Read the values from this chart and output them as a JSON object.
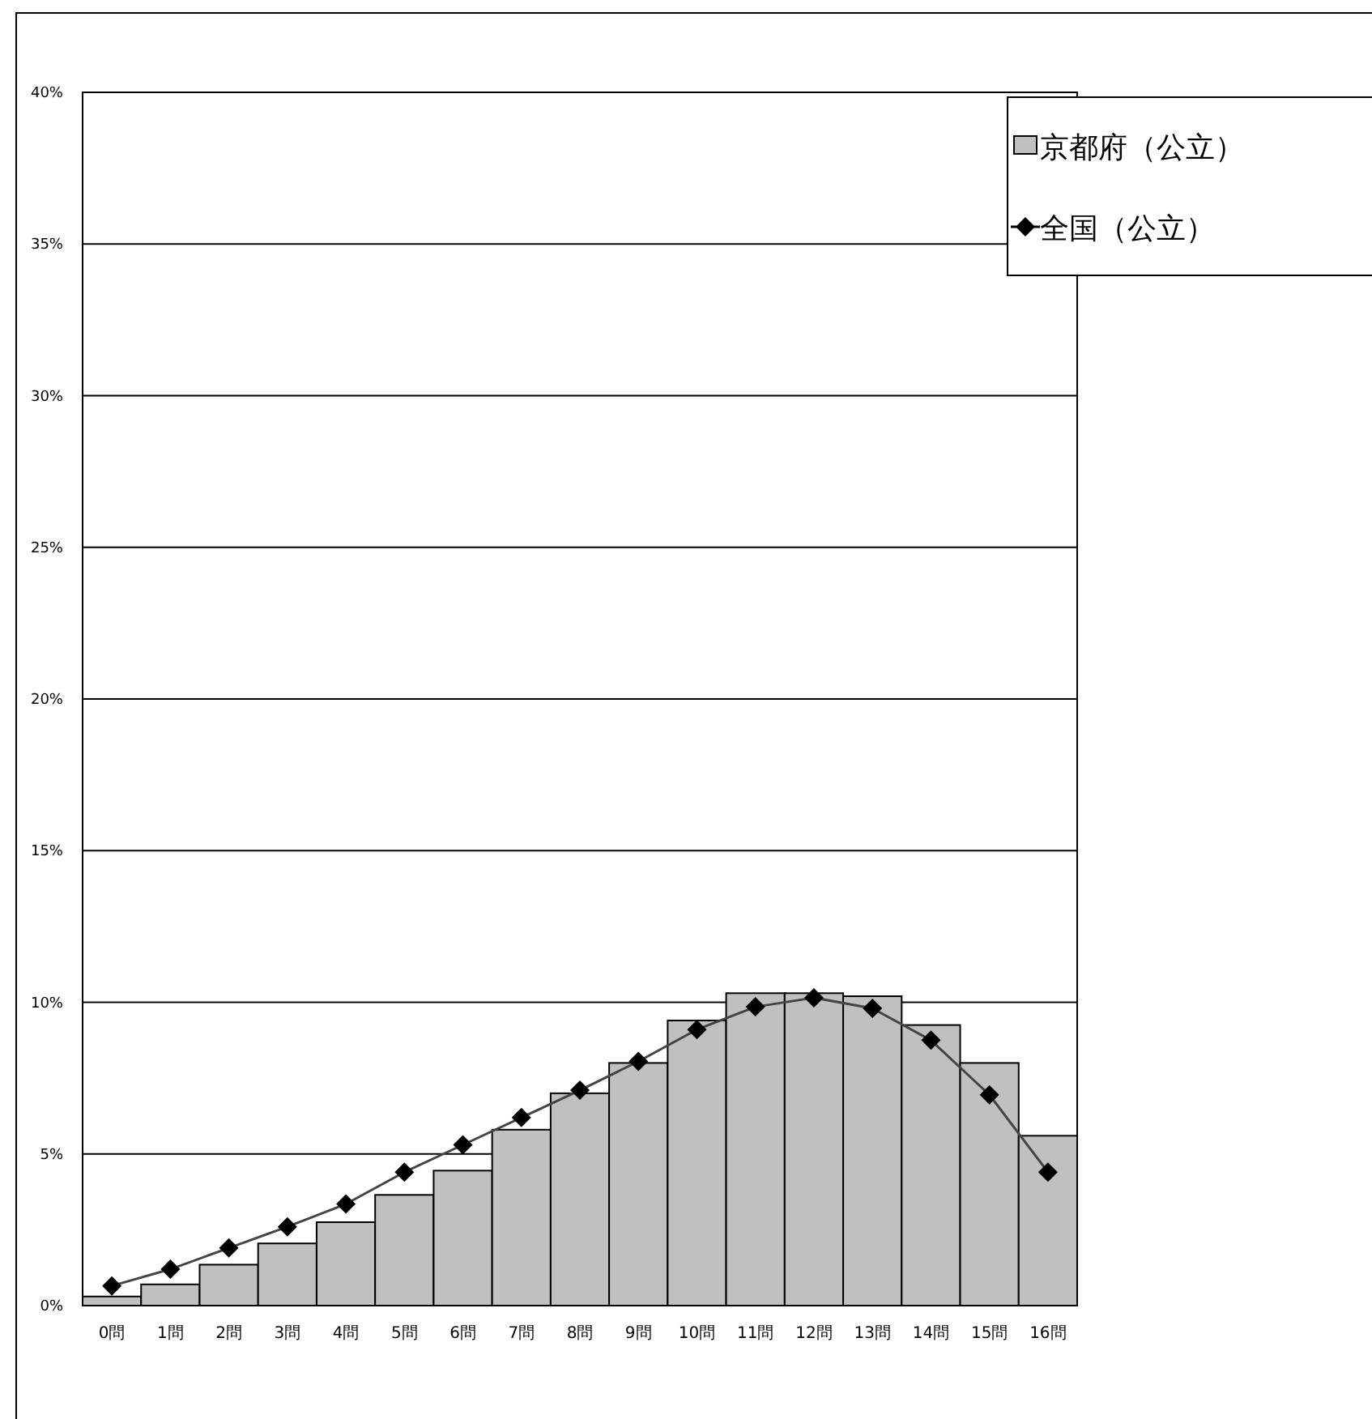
{
  "chart_data": {
    "type": "bar",
    "categories": [
      "0問",
      "1問",
      "2問",
      "3問",
      "4問",
      "5問",
      "6問",
      "7問",
      "8問",
      "9問",
      "10問",
      "11問",
      "12問",
      "13問",
      "14問",
      "15問",
      "16問"
    ],
    "series": [
      {
        "name": "京都府（公立）",
        "color": "#c0c0c0",
        "values": [
          0.3,
          0.7,
          1.35,
          2.05,
          2.75,
          3.65,
          4.45,
          5.8,
          7.0,
          8.0,
          9.4,
          10.3,
          10.3,
          10.2,
          9.25,
          8.0,
          5.6
        ]
      },
      {
        "name": "全国（公立）",
        "type": "line",
        "color": "#000000",
        "marker": "diamond",
        "values": [
          0.65,
          1.2,
          1.9,
          2.6,
          3.35,
          4.4,
          5.3,
          6.2,
          7.1,
          8.05,
          9.1,
          9.85,
          10.15,
          9.8,
          8.75,
          6.95,
          4.4
        ]
      }
    ],
    "ylim": [
      0,
      40
    ],
    "yticks": [
      {
        "value": 0,
        "label": "0%"
      },
      {
        "value": 5,
        "label": "5%"
      },
      {
        "value": 10,
        "label": "10%"
      },
      {
        "value": 15,
        "label": "15%"
      },
      {
        "value": 20,
        "label": "20%"
      },
      {
        "value": 25,
        "label": "25%"
      },
      {
        "value": 30,
        "label": "30%"
      },
      {
        "value": 35,
        "label": "35%"
      },
      {
        "value": 40,
        "label": "40%"
      }
    ],
    "grid": "y",
    "legend": "top right"
  }
}
